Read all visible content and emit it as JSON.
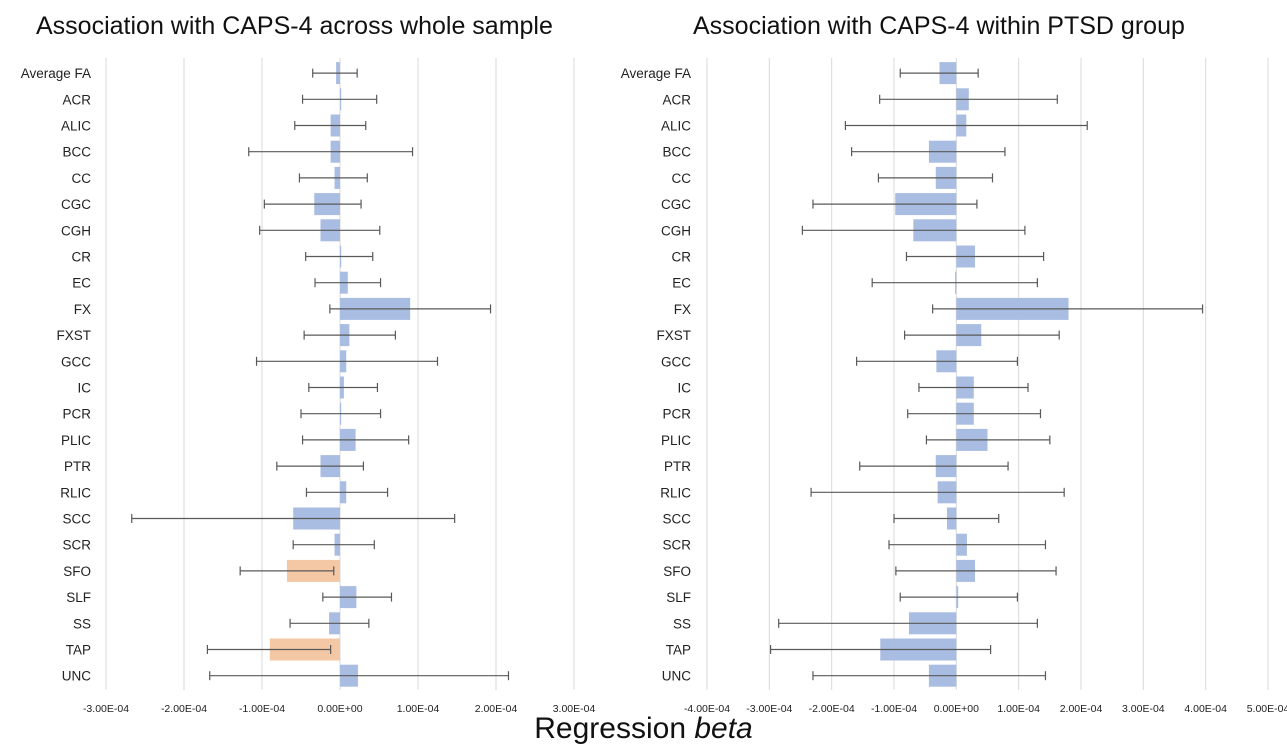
{
  "chart_data": [
    {
      "type": "bar",
      "orientation": "horizontal",
      "title": "Association with CAPS-4 across whole sample",
      "xlim": [
        -0.0003,
        0.0003
      ],
      "xticks": [
        "-3.00E-04",
        "-2.00E-04",
        "-1.00E-04",
        "0.00E+00",
        "1.00E-04",
        "2.00E-04",
        "3.00E-04"
      ],
      "grid": "vertical",
      "categories": [
        "Average FA",
        "ACR",
        "ALIC",
        "BCC",
        "CC",
        "CGC",
        "CGH",
        "CR",
        "EC",
        "FX",
        "FXST",
        "GCC",
        "IC",
        "PCR",
        "PLIC",
        "PTR",
        "RLIC",
        "SCC",
        "SCR",
        "SFO",
        "SLF",
        "SS",
        "TAP",
        "UNC"
      ],
      "values": [
        -5e-06,
        0.0,
        -1.2e-05,
        -1.2e-05,
        -7e-06,
        -3.3e-05,
        -2.5e-05,
        0.0,
        1e-05,
        9e-05,
        1.2e-05,
        8e-06,
        5e-06,
        0.0,
        2e-05,
        -2.5e-05,
        8e-06,
        -6e-05,
        -7e-06,
        -6.8e-05,
        2.1e-05,
        -1.4e-05,
        -9e-05,
        2.3e-05
      ],
      "ci_low": [
        -3.5e-05,
        -4.8e-05,
        -5.8e-05,
        -0.000117,
        -5.2e-05,
        -9.7e-05,
        -0.000103,
        -4.4e-05,
        -3.2e-05,
        -1.3e-05,
        -4.6e-05,
        -0.000107,
        -4e-05,
        -5e-05,
        -4.8e-05,
        -8.1e-05,
        -4.3e-05,
        -0.000267,
        -6e-05,
        -0.000128,
        -2.2e-05,
        -6.4e-05,
        -0.00017,
        -0.000167
      ],
      "ci_high": [
        2.2e-05,
        4.7e-05,
        3.3e-05,
        9.3e-05,
        3.5e-05,
        2.7e-05,
        5.1e-05,
        4.2e-05,
        5.2e-05,
        0.000193,
        7.1e-05,
        0.000125,
        4.8e-05,
        5.2e-05,
        8.8e-05,
        3e-05,
        6.1e-05,
        0.000147,
        4.4e-05,
        -8e-06,
        6.6e-05,
        3.7e-05,
        -1.2e-05,
        0.000216
      ],
      "bar_color": "#a9bce1",
      "highlight_color": "#f4c7a5",
      "highlight_categories": [
        "SFO",
        "TAP"
      ]
    },
    {
      "type": "bar",
      "orientation": "horizontal",
      "title": "Association with CAPS-4 within PTSD group",
      "xlim": [
        -0.0004,
        0.0005
      ],
      "xticks": [
        "-4.00E-04",
        "-3.00E-04",
        "-2.00E-04",
        "-1.00E-04",
        "0.00E+00",
        "1.00E-04",
        "2.00E-04",
        "3.00E-04",
        "4.00E-04",
        "5.00E-04"
      ],
      "grid": "vertical",
      "categories": [
        "Average FA",
        "ACR",
        "ALIC",
        "BCC",
        "CC",
        "CGC",
        "CGH",
        "CR",
        "EC",
        "FX",
        "FXST",
        "GCC",
        "IC",
        "PCR",
        "PLIC",
        "PTR",
        "RLIC",
        "SCC",
        "SCR",
        "SFO",
        "SLF",
        "SS",
        "TAP",
        "UNC"
      ],
      "values": [
        -2.7e-05,
        2e-05,
        1.6e-05,
        -4.4e-05,
        -3.3e-05,
        -9.8e-05,
        -6.9e-05,
        3e-05,
        -2e-06,
        0.00018,
        4e-05,
        -3.2e-05,
        2.8e-05,
        2.8e-05,
        5e-05,
        -3.3e-05,
        -3e-05,
        -1.5e-05,
        1.7e-05,
        3e-05,
        3e-06,
        -7.6e-05,
        -0.000122,
        -4.4e-05
      ],
      "ci_low": [
        -9e-05,
        -0.000123,
        -0.000178,
        -0.000168,
        -0.000125,
        -0.00023,
        -0.000247,
        -8e-05,
        -0.000135,
        -3.8e-05,
        -8.3e-05,
        -0.00016,
        -6e-05,
        -7.8e-05,
        -4.8e-05,
        -0.000155,
        -0.000233,
        -0.0001,
        -0.000108,
        -9.7e-05,
        -9e-05,
        -0.000285,
        -0.000298,
        -0.00023
      ],
      "ci_high": [
        3.5e-05,
        0.000162,
        0.00021,
        7.8e-05,
        5.8e-05,
        3.3e-05,
        0.00011,
        0.00014,
        0.00013,
        0.000395,
        0.000165,
        9.8e-05,
        0.000115,
        0.000135,
        0.00015,
        8.3e-05,
        0.000173,
        6.8e-05,
        0.000143,
        0.00016,
        9.8e-05,
        0.00013,
        5.5e-05,
        0.000143
      ],
      "bar_color": "#a9bce1",
      "highlight_color": "#f4c7a5",
      "highlight_categories": []
    }
  ],
  "xlabel_main": "Regression ",
  "xlabel_italic": "beta",
  "error_bar_color": "#595959",
  "grid_color": "#d9d9d9"
}
